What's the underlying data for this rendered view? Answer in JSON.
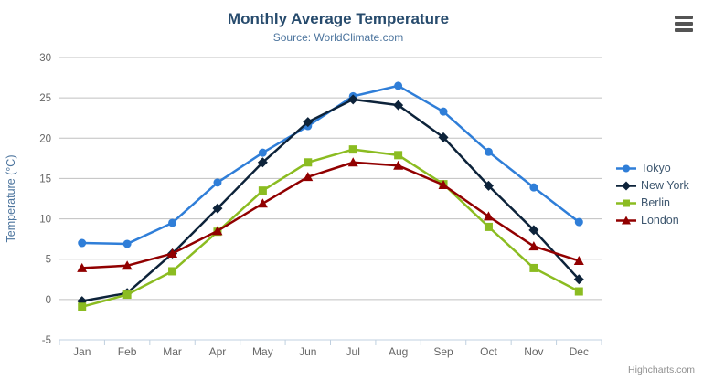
{
  "header": {
    "menu_tooltip": "Chart context menu"
  },
  "credits": {
    "label": "Highcharts.com"
  },
  "chart_data": {
    "type": "line",
    "title": "Monthly Average Temperature",
    "subtitle": "Source: WorldClimate.com",
    "xlabel": "",
    "ylabel": "Temperature (°C)",
    "ylim": [
      -5,
      30
    ],
    "yticks": [
      -5,
      0,
      5,
      10,
      15,
      20,
      25,
      30
    ],
    "grid": true,
    "legend_position": "right",
    "categories": [
      "Jan",
      "Feb",
      "Mar",
      "Apr",
      "May",
      "Jun",
      "Jul",
      "Aug",
      "Sep",
      "Oct",
      "Nov",
      "Dec"
    ],
    "series": [
      {
        "name": "Tokyo",
        "color": "#2f7ed8",
        "marker": "circle",
        "values": [
          7.0,
          6.9,
          9.5,
          14.5,
          18.2,
          21.5,
          25.2,
          26.5,
          23.3,
          18.3,
          13.9,
          9.6
        ]
      },
      {
        "name": "New York",
        "color": "#0d233a",
        "marker": "diamond",
        "values": [
          -0.2,
          0.8,
          5.7,
          11.3,
          17.0,
          22.0,
          24.8,
          24.1,
          20.1,
          14.1,
          8.6,
          2.5
        ]
      },
      {
        "name": "Berlin",
        "color": "#8bbc21",
        "marker": "square",
        "values": [
          -0.9,
          0.6,
          3.5,
          8.4,
          13.5,
          17.0,
          18.6,
          17.9,
          14.3,
          9.0,
          3.9,
          1.0
        ]
      },
      {
        "name": "London",
        "color": "#910000",
        "marker": "triangle",
        "values": [
          3.9,
          4.2,
          5.7,
          8.5,
          11.9,
          15.2,
          17.0,
          16.6,
          14.2,
          10.3,
          6.6,
          4.8
        ]
      }
    ],
    "axis_colors": {
      "grid": "#C0C0C0",
      "axis_line": "#C0D0E0",
      "labels": "#666666",
      "y_title": "#4d759e"
    }
  }
}
